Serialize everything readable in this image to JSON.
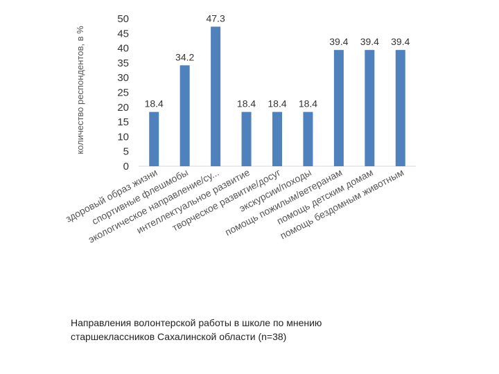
{
  "chart_data": {
    "type": "bar",
    "ylabel": "количество респондентов, в %",
    "ylim": [
      0,
      50
    ],
    "ytick_step": 5,
    "grid": false,
    "bar_color": "#4f81bd",
    "categories": [
      "здоровый образ жизни",
      "спортивные флешмобы",
      "экологическое направление/су...",
      "интеллектуальное развитие",
      "творческое развитие/досуг",
      "экскурсии/походы",
      "помощь пожилым/ветеранам",
      "помощь детским домам",
      "помощь бездомным животным"
    ],
    "values": [
      18.4,
      34.2,
      47.3,
      18.4,
      18.4,
      18.4,
      39.4,
      39.4,
      39.4
    ],
    "data_labels": [
      "18.4",
      "34.2",
      "47.3",
      "18.4",
      "18.4",
      "18.4",
      "39.4",
      "39.4",
      "39.4"
    ]
  },
  "caption": {
    "line1": "Направления волонтерской работы в школе по мнению",
    "line2": "старшеклассников Сахалинской области (n=38)"
  }
}
